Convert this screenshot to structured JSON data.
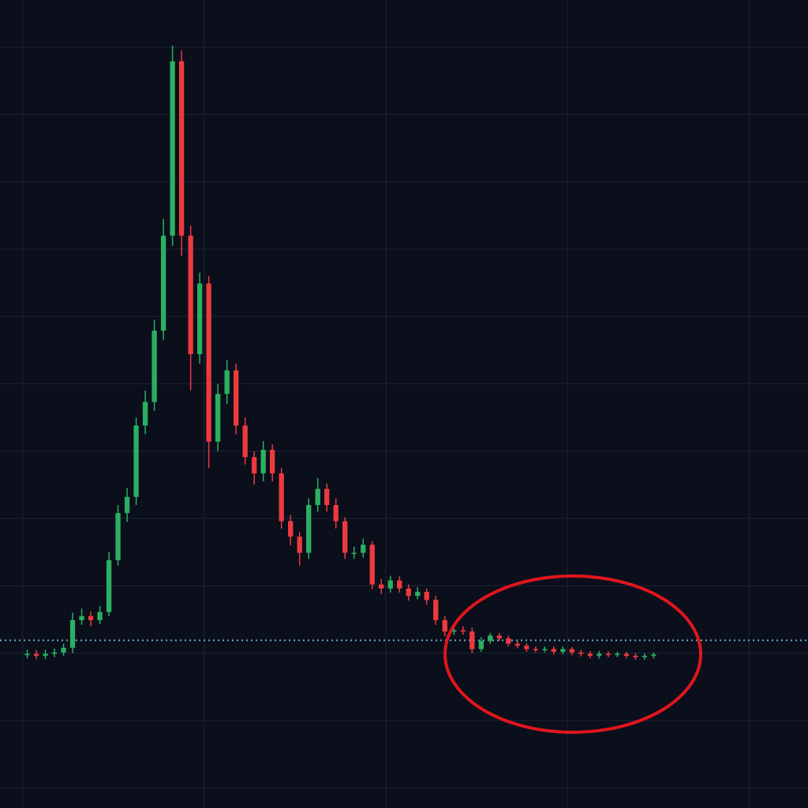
{
  "chart_data": {
    "type": "candlestick",
    "x": [
      0,
      1,
      2,
      3,
      4,
      5,
      6,
      7,
      8,
      9,
      10,
      11,
      12,
      13,
      14,
      15,
      16,
      17,
      18,
      19,
      20,
      21,
      22,
      23,
      24,
      25,
      26,
      27,
      28,
      29,
      30,
      31,
      32,
      33,
      34,
      35,
      36,
      37,
      38,
      39,
      40,
      41,
      42,
      43,
      44,
      45,
      46,
      47,
      48,
      49,
      50,
      51,
      52,
      53,
      54,
      55,
      56,
      57,
      58,
      59,
      60,
      61,
      62,
      63,
      64,
      65,
      66,
      67,
      68,
      69
    ],
    "open": [
      1.97,
      1.99,
      1.96,
      1.99,
      2.01,
      2.08,
      2.49,
      2.55,
      2.49,
      2.61,
      3.38,
      4.08,
      4.32,
      5.38,
      5.73,
      6.79,
      8.2,
      10.79,
      8.2,
      6.44,
      7.49,
      5.14,
      5.85,
      6.2,
      5.38,
      4.91,
      4.67,
      5.02,
      4.67,
      3.96,
      3.73,
      3.49,
      4.2,
      4.44,
      4.2,
      3.96,
      3.49,
      3.49,
      3.61,
      3.02,
      2.96,
      3.08,
      2.96,
      2.85,
      2.91,
      2.79,
      2.49,
      2.32,
      2.34,
      2.32,
      2.06,
      2.18,
      2.26,
      2.22,
      2.14,
      2.11,
      2.06,
      2.05,
      2.06,
      2.02,
      2.06,
      2.01,
      1.99,
      1.96,
      1.99,
      1.98,
      1.99,
      1.96,
      1.94,
      1.96
    ],
    "high": [
      2.05,
      2.05,
      2.05,
      2.07,
      2.14,
      2.6,
      2.66,
      2.62,
      2.7,
      3.5,
      4.2,
      4.45,
      5.5,
      5.9,
      6.95,
      8.45,
      11.02,
      10.95,
      8.35,
      7.65,
      7.6,
      6.0,
      6.35,
      6.3,
      5.5,
      5.0,
      5.15,
      5.1,
      4.75,
      4.05,
      3.8,
      4.3,
      4.6,
      4.52,
      4.3,
      4.02,
      3.58,
      3.7,
      3.66,
      3.1,
      3.15,
      3.14,
      3.02,
      2.98,
      2.96,
      2.85,
      2.55,
      2.4,
      2.4,
      2.38,
      2.24,
      2.3,
      2.3,
      2.26,
      2.18,
      2.15,
      2.1,
      2.1,
      2.1,
      2.1,
      2.09,
      2.05,
      2.03,
      2.03,
      2.03,
      2.02,
      2.02,
      2.0,
      2.0,
      2.01
    ],
    "low": [
      1.92,
      1.91,
      1.91,
      1.94,
      1.96,
      2.0,
      2.42,
      2.4,
      2.43,
      2.55,
      3.3,
      3.95,
      4.2,
      5.25,
      5.6,
      6.65,
      8.05,
      7.9,
      5.9,
      6.3,
      4.75,
      5.0,
      5.7,
      5.25,
      4.8,
      4.5,
      4.55,
      4.55,
      3.85,
      3.6,
      3.3,
      3.4,
      4.1,
      4.1,
      3.85,
      3.4,
      3.4,
      3.42,
      2.95,
      2.88,
      2.9,
      2.9,
      2.78,
      2.8,
      2.72,
      2.42,
      2.25,
      2.27,
      2.27,
      2.0,
      2.02,
      2.14,
      2.18,
      2.1,
      2.07,
      2.02,
      2.01,
      2.01,
      1.98,
      1.98,
      1.97,
      1.95,
      1.92,
      1.92,
      1.94,
      1.94,
      1.92,
      1.9,
      1.9,
      1.92
    ],
    "close": [
      1.99,
      1.96,
      1.99,
      2.01,
      2.08,
      2.49,
      2.55,
      2.49,
      2.61,
      3.38,
      4.08,
      4.32,
      5.38,
      5.73,
      6.79,
      8.2,
      10.79,
      8.2,
      6.44,
      7.49,
      5.14,
      5.85,
      6.2,
      5.38,
      4.91,
      4.67,
      5.02,
      4.67,
      3.96,
      3.73,
      3.49,
      4.2,
      4.44,
      4.2,
      3.96,
      3.49,
      3.49,
      3.61,
      3.02,
      2.96,
      3.08,
      2.96,
      2.85,
      2.91,
      2.79,
      2.49,
      2.32,
      2.34,
      2.32,
      2.06,
      2.18,
      2.26,
      2.22,
      2.14,
      2.11,
      2.06,
      2.05,
      2.06,
      2.02,
      2.06,
      2.01,
      1.99,
      1.96,
      1.99,
      1.98,
      1.99,
      1.96,
      1.94,
      1.96,
      1.98
    ],
    "up_color": "#2bb061",
    "down_color": "#ec3a3f",
    "xlim": [
      -3,
      86
    ],
    "xticks": [
      -0.5,
      19.5,
      39.5,
      59.5,
      79.5
    ],
    "ylim": [
      -0.3,
      11.7
    ],
    "yticks": [
      0,
      1,
      2,
      3,
      4,
      5,
      6,
      7,
      8,
      9,
      10,
      11
    ],
    "grid": true,
    "reference_line": {
      "value": 2.19,
      "color": "#5fb4d6"
    }
  }
}
